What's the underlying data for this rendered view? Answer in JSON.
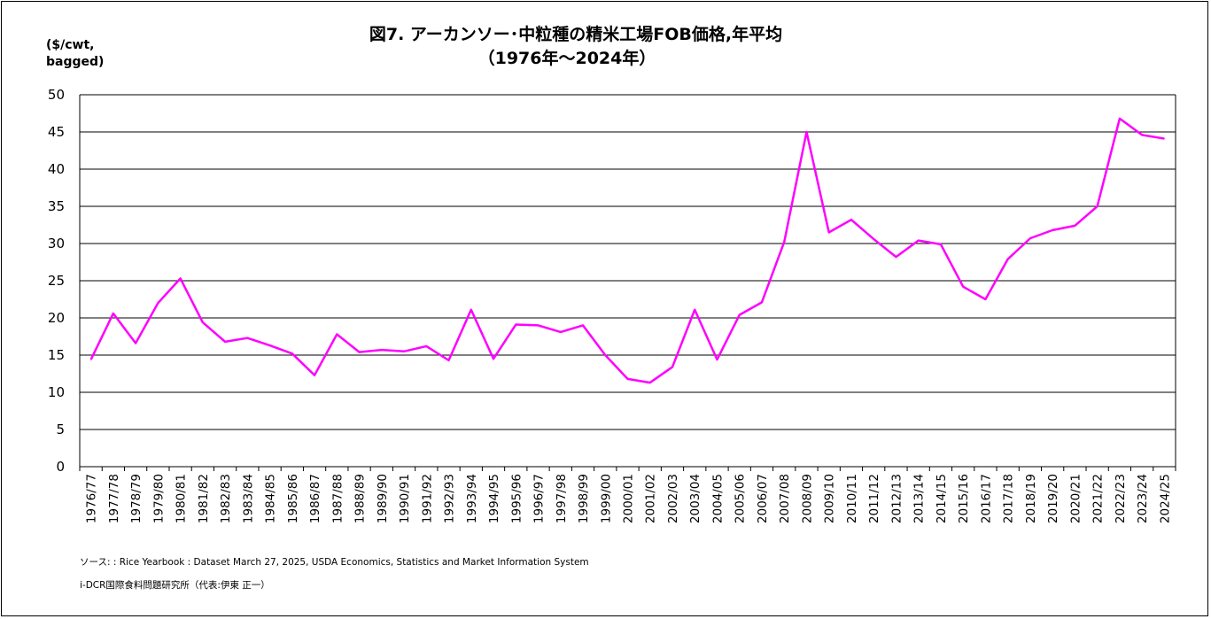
{
  "chart_data": {
    "type": "line",
    "title": "図7. アーカンソー･中粒種の精米工場FOB価格,年平均",
    "subtitle": "（1976年～2024年）",
    "ylabel_line1": "($/cwt,",
    "ylabel_line2": "bagged)",
    "xlabel": "",
    "ylim": [
      0,
      50
    ],
    "yticks": [
      0,
      5,
      10,
      15,
      20,
      25,
      30,
      35,
      40,
      45,
      50
    ],
    "grid": true,
    "legend": "none",
    "line_color": "#FF00FF",
    "categories": [
      "1976/77",
      "1977/78",
      "1978/79",
      "1979/80",
      "1980/81",
      "1981/82",
      "1982/83",
      "1983/84",
      "1984/85",
      "1985/86",
      "1986/87",
      "1987/88",
      "1988/89",
      "1989/90",
      "1990/91",
      "1991/92",
      "1992/93",
      "1993/94",
      "1994/95",
      "1995/96",
      "1996/97",
      "1997/98",
      "1998/99",
      "1999/00",
      "2000/01",
      "2001/02",
      "2002/03",
      "2003/04",
      "2004/05",
      "2005/06",
      "2006/07",
      "2007/08",
      "2008/09",
      "2009/10",
      "2010/11",
      "2011/12",
      "2012/13",
      "2013/14",
      "2014/15",
      "2015/16",
      "2016/17",
      "2017/18",
      "2018/19",
      "2019/20",
      "2020/21",
      "2021/22",
      "2022/23",
      "2023/24",
      "2024/25"
    ],
    "values": [
      14.4,
      20.6,
      16.6,
      22.0,
      25.3,
      19.4,
      16.8,
      17.3,
      16.3,
      15.2,
      12.3,
      17.8,
      15.4,
      15.7,
      15.5,
      16.2,
      14.3,
      21.1,
      14.5,
      19.1,
      19.0,
      18.1,
      19.0,
      15.0,
      11.8,
      11.3,
      13.4,
      21.1,
      14.4,
      20.4,
      22.1,
      30.2,
      45.0,
      31.5,
      33.2,
      30.6,
      28.2,
      30.4,
      29.9,
      24.2,
      22.5,
      27.9,
      30.7,
      31.8,
      32.4,
      35.0,
      46.8,
      44.6,
      44.1
    ]
  },
  "source_note": "ソース: : Rice Yearbook : Dataset  March 27, 2025, USDA Economics, Statistics and Market Information System",
  "credit_note": "i-DCR国際食料問題研究所（代表:伊東 正一）"
}
